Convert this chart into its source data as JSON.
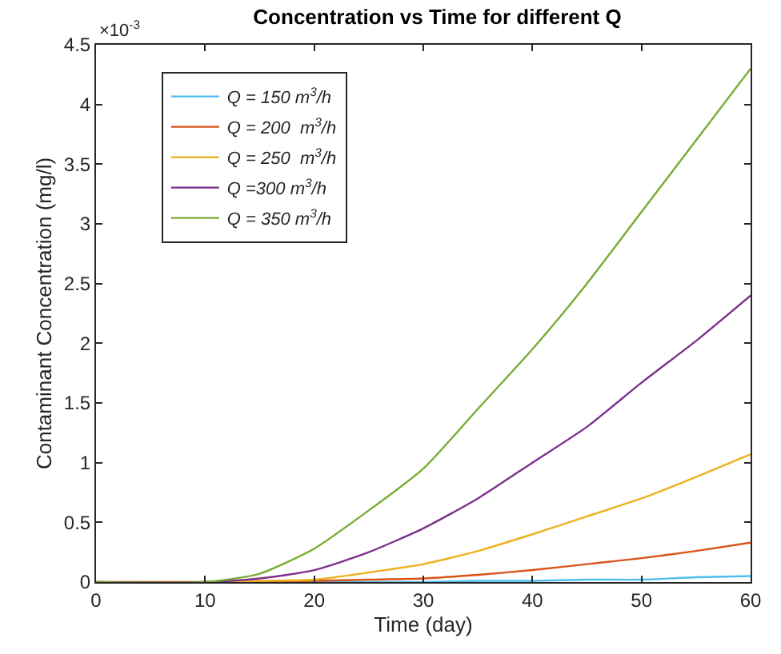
{
  "chart_data": {
    "type": "line",
    "title": "Concentration vs Time for different Q",
    "xlabel": "Time (day)",
    "ylabel": "Contaminant Concentration (mg/l)",
    "annotations": [
      "×10$^{-3}$"
    ],
    "x": [
      0,
      10,
      15,
      20,
      25,
      30,
      35,
      40,
      45,
      50,
      55,
      60
    ],
    "series": [
      {
        "name": "Q = 150 m$^{3}$/h",
        "color": "#4dbeee",
        "values": [
          null,
          null,
          0,
          0,
          0,
          0,
          0.01,
          0.01,
          0.02,
          0.02,
          0.04,
          0.05
        ]
      },
      {
        "name": "Q = 200  m$^{3}$/h",
        "color": "#d95319",
        "values": [
          0,
          0,
          0,
          0.01,
          0.02,
          0.03,
          0.06,
          0.1,
          0.15,
          0.2,
          0.26,
          0.33
        ]
      },
      {
        "name": "Q = 250  m$^{3}$/h",
        "color": "#edb120",
        "values": [
          0,
          0,
          0.01,
          0.02,
          0.08,
          0.15,
          0.26,
          0.4,
          0.55,
          0.7,
          0.88,
          1.07
        ]
      },
      {
        "name": "Q =300 m$^{3}$/h",
        "color": "#7e2f8e",
        "values": [
          0,
          0,
          0.03,
          0.1,
          0.25,
          0.45,
          0.7,
          1.0,
          1.3,
          1.67,
          2.02,
          2.4
        ]
      },
      {
        "name": "Q = 350 m$^{3}$/h",
        "color": "#77ac30",
        "values": [
          0,
          0,
          0.07,
          0.28,
          0.6,
          0.95,
          1.45,
          1.95,
          2.5,
          3.1,
          3.7,
          4.3
        ]
      }
    ],
    "xlim": [
      0,
      60
    ],
    "xticks": [
      0,
      10,
      20,
      30,
      40,
      50,
      60
    ],
    "ylim": [
      0,
      4.5
    ],
    "yticks": [
      0,
      0.5,
      1,
      1.5,
      2,
      2.5,
      3,
      3.5,
      4,
      4.5
    ],
    "legend": "top left",
    "marker": "none",
    "line_style": "solid"
  }
}
